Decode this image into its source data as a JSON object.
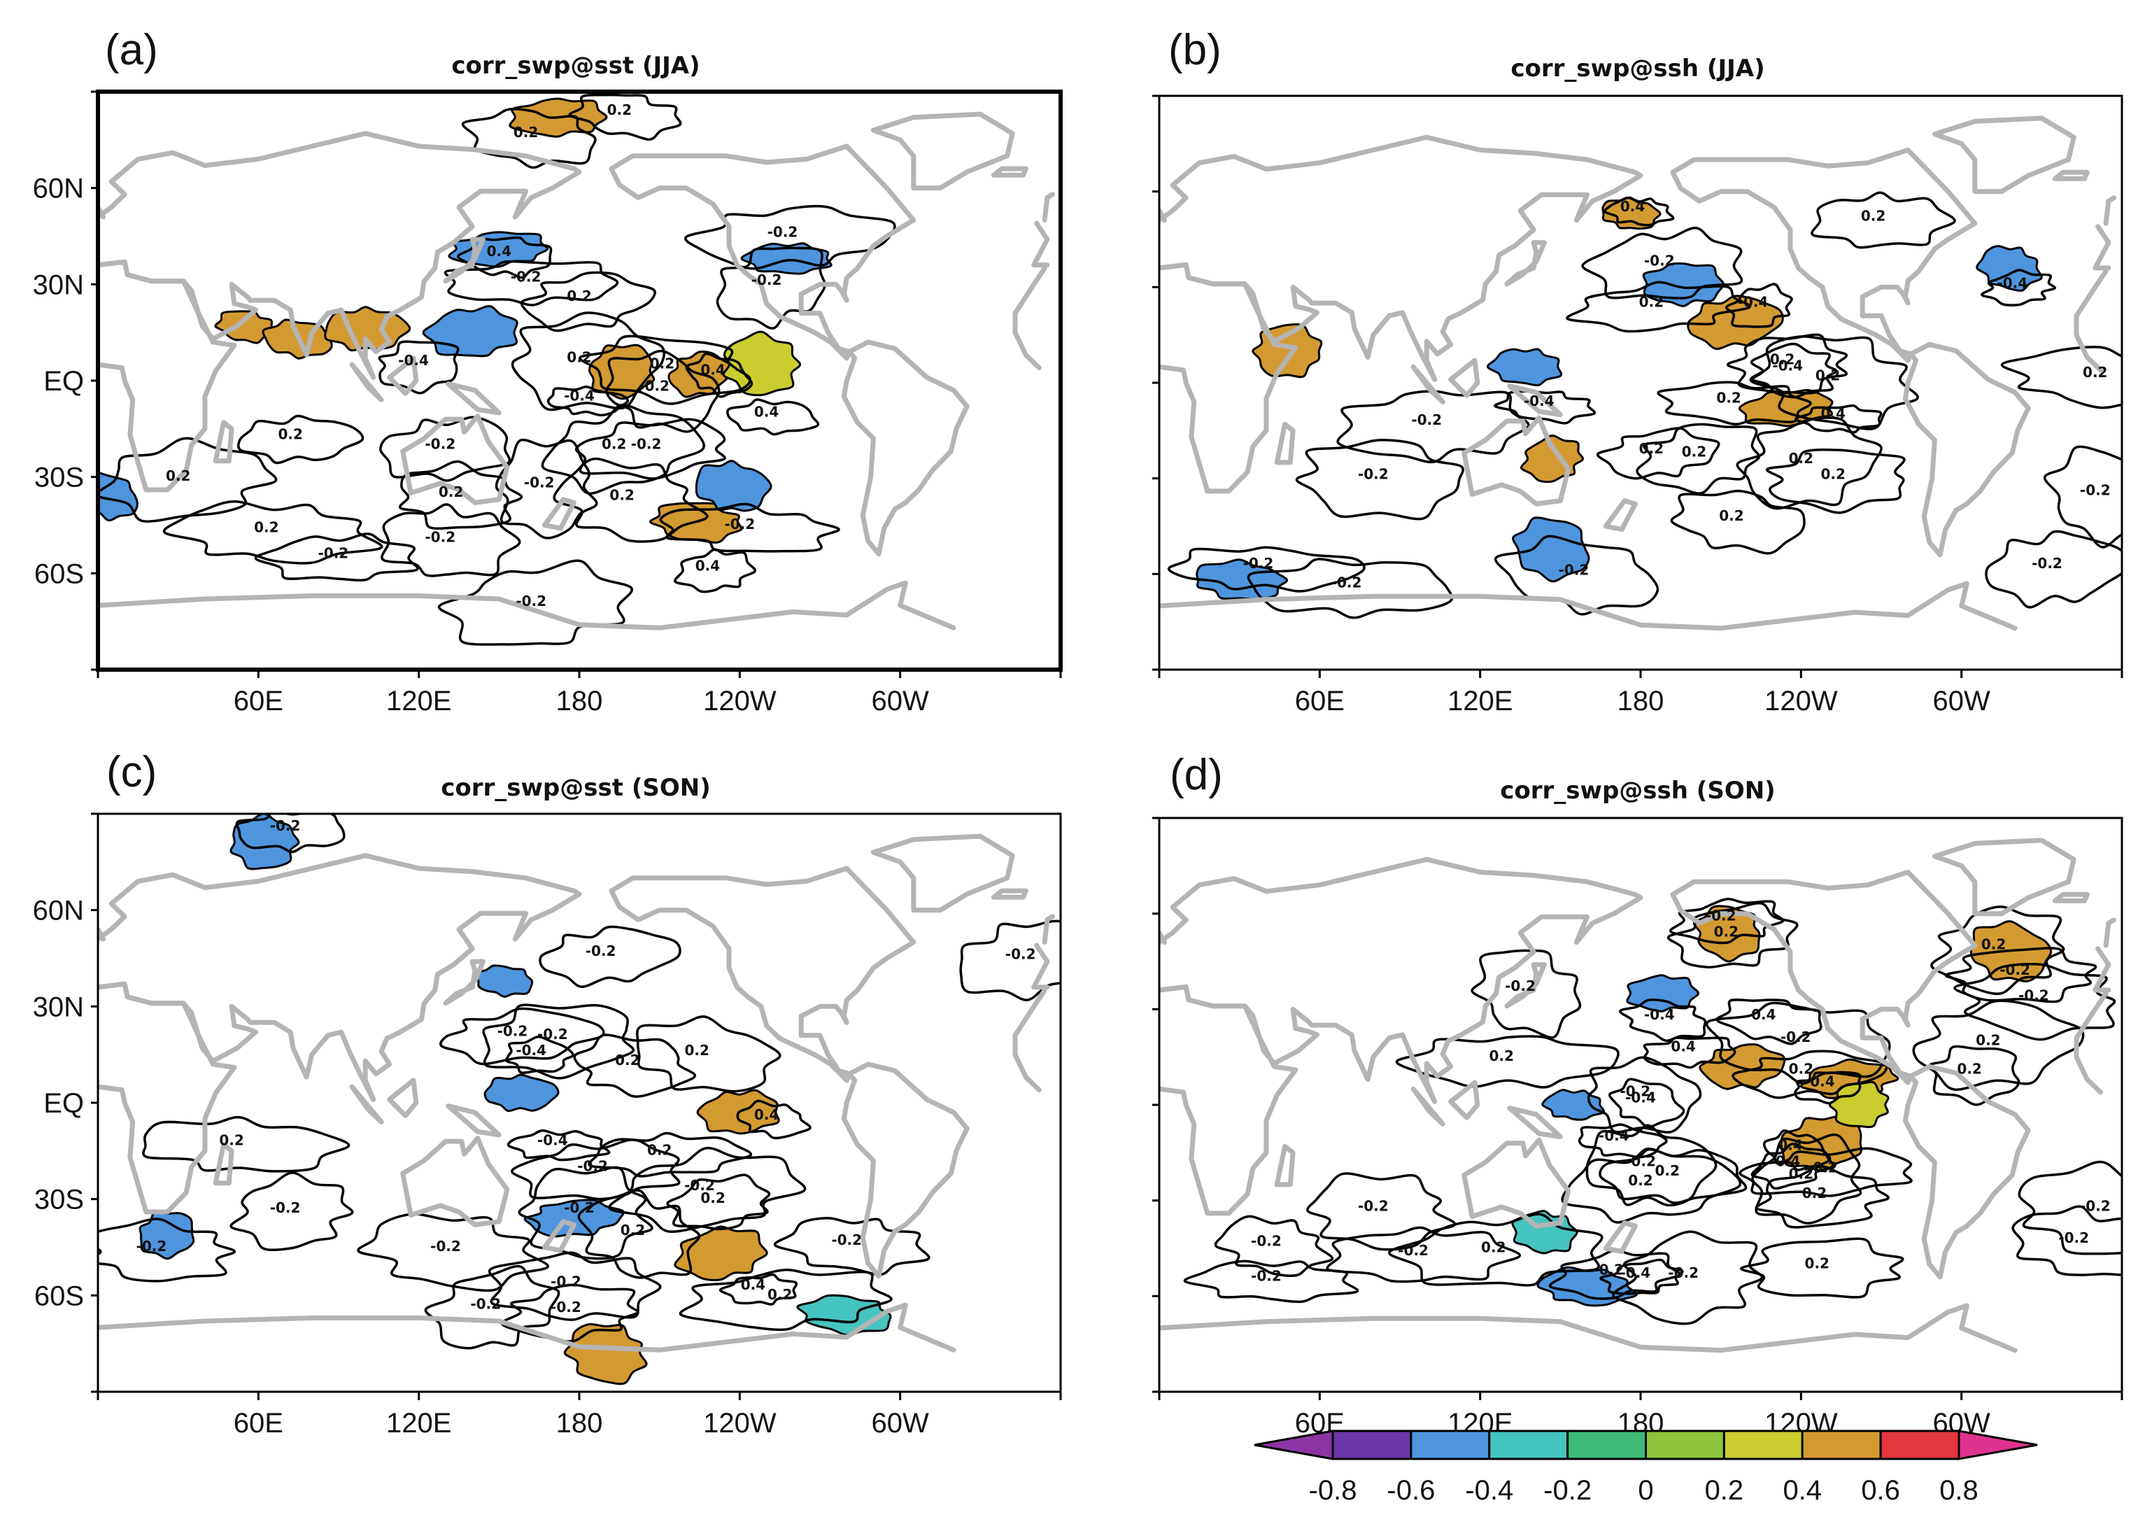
{
  "chart_data": [
    {
      "type": "heatmap",
      "panel_label": "(a)",
      "title": "corr_swp@sst (JJA)",
      "xticks": [
        "60E",
        "120E",
        "180",
        "120W",
        "60W"
      ],
      "yticks": [
        "60N",
        "30N",
        "EQ",
        "30S",
        "60S"
      ],
      "xlim": [
        0,
        360
      ],
      "ylim": [
        -90,
        90
      ],
      "contour_levels": [
        -0.4,
        -0.2,
        0.2,
        0.4
      ],
      "contour_labels": [
        {
          "lon": 195,
          "lat": 84,
          "text": "0.2"
        },
        {
          "lon": 160,
          "lat": 77,
          "text": "0.2"
        },
        {
          "lon": 150,
          "lat": 40,
          "text": "0.4"
        },
        {
          "lon": 160,
          "lat": 32,
          "text": "-0.2"
        },
        {
          "lon": 256,
          "lat": 46,
          "text": "-0.2"
        },
        {
          "lon": 250,
          "lat": 31,
          "text": "-0.2"
        },
        {
          "lon": 180,
          "lat": 26,
          "text": "0.2"
        },
        {
          "lon": 118,
          "lat": 6,
          "text": "-0.4"
        },
        {
          "lon": 180,
          "lat": 7,
          "text": "0.2"
        },
        {
          "lon": 211,
          "lat": 5,
          "text": "0.2"
        },
        {
          "lon": 208,
          "lat": -2,
          "text": "-0.2"
        },
        {
          "lon": 230,
          "lat": 3,
          "text": "0.4"
        },
        {
          "lon": 180,
          "lat": -5,
          "text": "-0.4"
        },
        {
          "lon": 250,
          "lat": -10,
          "text": "0.4"
        },
        {
          "lon": 72,
          "lat": -17,
          "text": "0.2"
        },
        {
          "lon": 128,
          "lat": -20,
          "text": "-0.2"
        },
        {
          "lon": 193,
          "lat": -20,
          "text": "0.2"
        },
        {
          "lon": 205,
          "lat": -20,
          "text": "-0.2"
        },
        {
          "lon": 30,
          "lat": -30,
          "text": "0.2"
        },
        {
          "lon": 165,
          "lat": -32,
          "text": "-0.2"
        },
        {
          "lon": 132,
          "lat": -35,
          "text": "0.2"
        },
        {
          "lon": 196,
          "lat": -36,
          "text": "0.2"
        },
        {
          "lon": 240,
          "lat": -45,
          "text": "-0.2"
        },
        {
          "lon": 63,
          "lat": -46,
          "text": "0.2"
        },
        {
          "lon": 128,
          "lat": -49,
          "text": "-0.2"
        },
        {
          "lon": 88,
          "lat": -54,
          "text": "-0.2"
        },
        {
          "lon": 228,
          "lat": -58,
          "text": "0.4"
        },
        {
          "lon": 162,
          "lat": -69,
          "text": "-0.2"
        }
      ],
      "shaded_regions": [
        {
          "lon": 55,
          "lat": 17,
          "value": 0.5
        },
        {
          "lon": 75,
          "lat": 13,
          "value": 0.5
        },
        {
          "lon": 100,
          "lat": 16,
          "value": 0.5
        },
        {
          "lon": 140,
          "lat": 15,
          "value": -0.5
        },
        {
          "lon": 150,
          "lat": 41,
          "value": -0.5
        },
        {
          "lon": 225,
          "lat": 2,
          "value": 0.5
        },
        {
          "lon": 196,
          "lat": 3,
          "value": 0.5
        },
        {
          "lon": 248,
          "lat": 5,
          "value": 0.35
        },
        {
          "lon": 224,
          "lat": -44,
          "value": 0.5
        },
        {
          "lon": 4,
          "lat": -36,
          "value": -0.5
        },
        {
          "lon": 237,
          "lat": -33,
          "value": -0.5
        },
        {
          "lon": 258,
          "lat": 38,
          "value": -0.5
        },
        {
          "lon": 172,
          "lat": 82,
          "value": 0.5
        }
      ]
    },
    {
      "type": "heatmap",
      "panel_label": "(b)",
      "title": "corr_swp@ssh (JJA)",
      "xticks": [
        "60E",
        "120E",
        "180",
        "120W",
        "60W"
      ],
      "yticks": [
        "60N",
        "30N",
        "EQ",
        "30S",
        "60S"
      ],
      "xlim": [
        0,
        360
      ],
      "ylim": [
        -90,
        90
      ],
      "contour_levels": [
        -0.4,
        -0.2,
        0.2,
        0.4
      ],
      "contour_labels": [
        {
          "lon": 177,
          "lat": 55,
          "text": "0.4"
        },
        {
          "lon": 267,
          "lat": 52,
          "text": "0.2"
        },
        {
          "lon": 187,
          "lat": 38,
          "text": "-0.2"
        },
        {
          "lon": 184,
          "lat": 25,
          "text": "0.2"
        },
        {
          "lon": 222,
          "lat": 25,
          "text": "-0.4"
        },
        {
          "lon": 319,
          "lat": 31,
          "text": "-0.4"
        },
        {
          "lon": 233,
          "lat": 7,
          "text": "0.2"
        },
        {
          "lon": 235,
          "lat": 5,
          "text": "-0.4"
        },
        {
          "lon": 250,
          "lat": 2,
          "text": "0.2"
        },
        {
          "lon": 350,
          "lat": 3,
          "text": "0.2"
        },
        {
          "lon": 142,
          "lat": -6,
          "text": "-0.4"
        },
        {
          "lon": 213,
          "lat": -5,
          "text": "0.2"
        },
        {
          "lon": 252,
          "lat": -10,
          "text": "0.4"
        },
        {
          "lon": 100,
          "lat": -12,
          "text": "-0.2"
        },
        {
          "lon": 184,
          "lat": -21,
          "text": "0.2"
        },
        {
          "lon": 200,
          "lat": -22,
          "text": "0.2"
        },
        {
          "lon": 240,
          "lat": -24,
          "text": "0.2"
        },
        {
          "lon": 252,
          "lat": -29,
          "text": "0.2"
        },
        {
          "lon": 80,
          "lat": -29,
          "text": "-0.2"
        },
        {
          "lon": 350,
          "lat": -34,
          "text": "-0.2"
        },
        {
          "lon": 214,
          "lat": -42,
          "text": "0.2"
        },
        {
          "lon": 155,
          "lat": -59,
          "text": "-0.2"
        },
        {
          "lon": 37,
          "lat": -57,
          "text": "-0.2"
        },
        {
          "lon": 70,
          "lat": -63,
          "text": "-0.2"
        },
        {
          "lon": 332,
          "lat": -57,
          "text": "-0.2"
        }
      ],
      "shaded_regions": [
        {
          "lon": 176,
          "lat": 53,
          "value": 0.5
        },
        {
          "lon": 137,
          "lat": 5,
          "value": -0.5
        },
        {
          "lon": 196,
          "lat": 31,
          "value": -0.5
        },
        {
          "lon": 215,
          "lat": 19,
          "value": 0.5
        },
        {
          "lon": 235,
          "lat": -8,
          "value": 0.5
        },
        {
          "lon": 147,
          "lat": -24,
          "value": 0.5
        },
        {
          "lon": 48,
          "lat": 10,
          "value": 0.5
        },
        {
          "lon": 147,
          "lat": -52,
          "value": -0.5
        },
        {
          "lon": 30,
          "lat": -62,
          "value": -0.5
        },
        {
          "lon": 318,
          "lat": 36,
          "value": -0.5
        }
      ]
    },
    {
      "type": "heatmap",
      "panel_label": "(c)",
      "title": "corr_swp@sst (SON)",
      "xticks": [
        "60E",
        "120E",
        "180",
        "120W",
        "60W"
      ],
      "yticks": [
        "60N",
        "30N",
        "EQ",
        "30S",
        "60S"
      ],
      "xlim": [
        0,
        360
      ],
      "ylim": [
        -90,
        90
      ],
      "contour_levels": [
        -0.4,
        -0.2,
        0.2,
        0.4
      ],
      "contour_labels": [
        {
          "lon": 70,
          "lat": 86,
          "text": "-0.2"
        },
        {
          "lon": 188,
          "lat": 47,
          "text": "-0.2"
        },
        {
          "lon": 345,
          "lat": 46,
          "text": "-0.2"
        },
        {
          "lon": 155,
          "lat": 22,
          "text": "-0.2"
        },
        {
          "lon": 170,
          "lat": 21,
          "text": "-0.2"
        },
        {
          "lon": 162,
          "lat": 16,
          "text": "-0.4"
        },
        {
          "lon": 198,
          "lat": 13,
          "text": "0.2"
        },
        {
          "lon": 224,
          "lat": 16,
          "text": "0.2"
        },
        {
          "lon": 250,
          "lat": -4,
          "text": "0.4"
        },
        {
          "lon": 50,
          "lat": -12,
          "text": "0.2"
        },
        {
          "lon": 170,
          "lat": -12,
          "text": "-0.4"
        },
        {
          "lon": 210,
          "lat": -15,
          "text": "0.2"
        },
        {
          "lon": 185,
          "lat": -20,
          "text": "-0.2"
        },
        {
          "lon": 225,
          "lat": -26,
          "text": "-0.2"
        },
        {
          "lon": 230,
          "lat": -30,
          "text": "0.2"
        },
        {
          "lon": 70,
          "lat": -33,
          "text": "-0.2"
        },
        {
          "lon": 180,
          "lat": -33,
          "text": "-0.2"
        },
        {
          "lon": 20,
          "lat": -45,
          "text": "-0.2"
        },
        {
          "lon": 130,
          "lat": -45,
          "text": "-0.2"
        },
        {
          "lon": 200,
          "lat": -40,
          "text": "0.2"
        },
        {
          "lon": 280,
          "lat": -43,
          "text": "-0.2"
        },
        {
          "lon": 175,
          "lat": -56,
          "text": "-0.2"
        },
        {
          "lon": 245,
          "lat": -57,
          "text": "0.4"
        },
        {
          "lon": 255,
          "lat": -60,
          "text": "0.2"
        },
        {
          "lon": 145,
          "lat": -63,
          "text": "-0.2"
        },
        {
          "lon": 175,
          "lat": -64,
          "text": "-0.2"
        }
      ],
      "shaded_regions": [
        {
          "lon": 152,
          "lat": 38,
          "value": -0.5
        },
        {
          "lon": 158,
          "lat": 3,
          "value": -0.5
        },
        {
          "lon": 240,
          "lat": -3,
          "value": 0.5
        },
        {
          "lon": 233,
          "lat": -47,
          "value": 0.5
        },
        {
          "lon": 178,
          "lat": -36,
          "value": -0.5
        },
        {
          "lon": 26,
          "lat": -41,
          "value": -0.5
        },
        {
          "lon": 62,
          "lat": 81,
          "value": -0.5
        },
        {
          "lon": 190,
          "lat": -78,
          "value": 0.5
        },
        {
          "lon": 280,
          "lat": -66,
          "value": -0.35
        }
      ]
    },
    {
      "type": "heatmap",
      "panel_label": "(d)",
      "title": "corr_swp@ssh (SON)",
      "xticks": [
        "60E",
        "120E",
        "180",
        "120W",
        "60W"
      ],
      "yticks": [
        "60N",
        "30N",
        "EQ",
        "30S",
        "60S"
      ],
      "xlim": [
        0,
        360
      ],
      "ylim": [
        -90,
        90
      ],
      "contour_levels": [
        -0.4,
        -0.2,
        0.2,
        0.4
      ],
      "contour_labels": [
        {
          "lon": 210,
          "lat": 59,
          "text": "-0.2"
        },
        {
          "lon": 212,
          "lat": 54,
          "text": "0.2"
        },
        {
          "lon": 312,
          "lat": 50,
          "text": "0.2"
        },
        {
          "lon": 320,
          "lat": 42,
          "text": "-0.2"
        },
        {
          "lon": 327,
          "lat": 34,
          "text": "-0.2"
        },
        {
          "lon": 135,
          "lat": 37,
          "text": "-0.2"
        },
        {
          "lon": 187,
          "lat": 28,
          "text": "-0.4"
        },
        {
          "lon": 226,
          "lat": 28,
          "text": "0.4"
        },
        {
          "lon": 238,
          "lat": 21,
          "text": "-0.2"
        },
        {
          "lon": 128,
          "lat": 15,
          "text": "0.2"
        },
        {
          "lon": 196,
          "lat": 18,
          "text": "0.4"
        },
        {
          "lon": 240,
          "lat": 11,
          "text": "0.2"
        },
        {
          "lon": 248,
          "lat": 7,
          "text": "0.4"
        },
        {
          "lon": 310,
          "lat": 20,
          "text": "0.2"
        },
        {
          "lon": 303,
          "lat": 11,
          "text": "0.2"
        },
        {
          "lon": 178,
          "lat": 4,
          "text": "-0.2"
        },
        {
          "lon": 180,
          "lat": 2,
          "text": "-0.4"
        },
        {
          "lon": 170,
          "lat": -10,
          "text": "-0.4"
        },
        {
          "lon": 236,
          "lat": -13,
          "text": "0.4"
        },
        {
          "lon": 180,
          "lat": -18,
          "text": "-0.2"
        },
        {
          "lon": 190,
          "lat": -21,
          "text": "0.2"
        },
        {
          "lon": 180,
          "lat": -24,
          "text": "0.2"
        },
        {
          "lon": 248,
          "lat": -20,
          "text": "-0.2"
        },
        {
          "lon": 234,
          "lat": -18,
          "text": "-0.4"
        },
        {
          "lon": 240,
          "lat": -22,
          "text": "0.2"
        },
        {
          "lon": 245,
          "lat": -28,
          "text": "0.2"
        },
        {
          "lon": 80,
          "lat": -32,
          "text": "-0.2"
        },
        {
          "lon": 350,
          "lat": -32,
          "text": "-0.2"
        },
        {
          "lon": 40,
          "lat": -43,
          "text": "-0.2"
        },
        {
          "lon": 342,
          "lat": -42,
          "text": "-0.2"
        },
        {
          "lon": 40,
          "lat": -54,
          "text": "-0.2"
        },
        {
          "lon": 95,
          "lat": -46,
          "text": "-0.2"
        },
        {
          "lon": 125,
          "lat": -45,
          "text": "0.2"
        },
        {
          "lon": 168,
          "lat": -52,
          "text": "-0.2"
        },
        {
          "lon": 178,
          "lat": -53,
          "text": "-0.4"
        },
        {
          "lon": 196,
          "lat": -53,
          "text": "-0.2"
        },
        {
          "lon": 246,
          "lat": -50,
          "text": "0.2"
        }
      ],
      "shaded_regions": [
        {
          "lon": 155,
          "lat": 0,
          "value": -0.5
        },
        {
          "lon": 188,
          "lat": 35,
          "value": -0.5
        },
        {
          "lon": 218,
          "lat": 12,
          "value": 0.5
        },
        {
          "lon": 248,
          "lat": -12,
          "value": 0.5
        },
        {
          "lon": 258,
          "lat": 8,
          "value": 0.5
        },
        {
          "lon": 262,
          "lat": 0,
          "value": 0.35
        },
        {
          "lon": 213,
          "lat": 54,
          "value": 0.5
        },
        {
          "lon": 318,
          "lat": 48,
          "value": 0.5
        },
        {
          "lon": 160,
          "lat": -57,
          "value": -0.5
        },
        {
          "lon": 144,
          "lat": -40,
          "value": -0.35
        }
      ]
    }
  ],
  "colorbar": {
    "tick_labels": [
      "-0.8",
      "-0.6",
      "-0.4",
      "-0.2",
      "0",
      "0.2",
      "0.4",
      "0.6",
      "0.8"
    ],
    "bins": [
      {
        "lo": -0.8,
        "hi": -0.6,
        "color": "#6b38a8"
      },
      {
        "lo": -0.6,
        "hi": -0.4,
        "color": "#4f95de"
      },
      {
        "lo": -0.4,
        "hi": -0.2,
        "color": "#46c4bf"
      },
      {
        "lo": -0.2,
        "hi": 0.0,
        "color": "#3fba78"
      },
      {
        "lo": 0.0,
        "hi": 0.2,
        "color": "#8fc43c"
      },
      {
        "lo": 0.2,
        "hi": 0.4,
        "color": "#c9cd2e"
      },
      {
        "lo": 0.4,
        "hi": 0.6,
        "color": "#d49a32"
      },
      {
        "lo": 0.6,
        "hi": 0.8,
        "color": "#e2373d"
      }
    ],
    "under_color": "#8e35a6",
    "over_color": "#e0338f"
  },
  "colors": {
    "land_outline": "#b4b4b4",
    "contour_line": "#000000"
  }
}
